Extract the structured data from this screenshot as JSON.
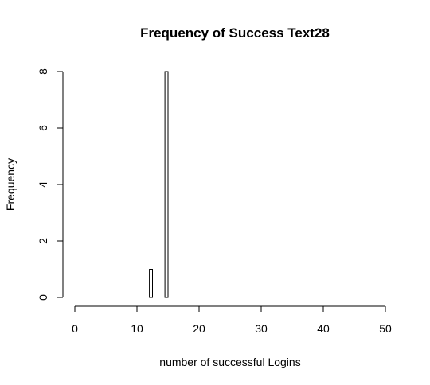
{
  "chart_data": {
    "type": "bar",
    "title": "Frequency of Success Text28",
    "xlabel": "number of successful Logins",
    "ylabel": "Frequency",
    "xlim": [
      0,
      50
    ],
    "ylim": [
      0,
      8
    ],
    "x_ticks": [
      0,
      10,
      20,
      30,
      40,
      50
    ],
    "y_ticks": [
      0,
      2,
      4,
      6,
      8
    ],
    "bins": [
      {
        "start": 12,
        "end": 12.5,
        "count": 1
      },
      {
        "start": 12.5,
        "end": 13,
        "count": 0
      },
      {
        "start": 13,
        "end": 13.5,
        "count": 0
      },
      {
        "start": 13.5,
        "end": 14,
        "count": 0
      },
      {
        "start": 14,
        "end": 14.5,
        "count": 0
      },
      {
        "start": 14.5,
        "end": 15,
        "count": 8
      }
    ],
    "grid": false,
    "legend": "none"
  }
}
